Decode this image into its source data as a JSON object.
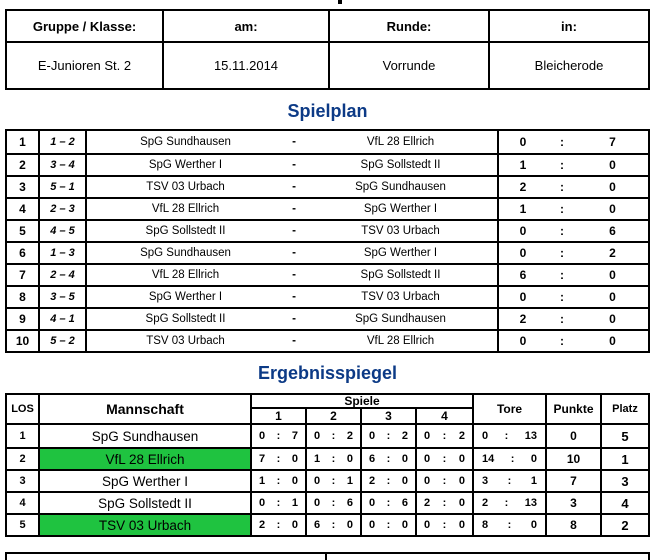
{
  "chars": {
    "colon": ":",
    "dash": "-"
  },
  "colors": {
    "title_blue": "#0c3a86",
    "highlight_green": "#1fc340",
    "border": "#000000"
  },
  "info_table": {
    "headers": [
      "Gruppe / Klasse:",
      "am:",
      "Runde:",
      "in:"
    ],
    "values": [
      "E-Junioren St. 2",
      "15.11.2014",
      "Vorrunde",
      "Bleicherode"
    ]
  },
  "spielplan": {
    "title": "Spielplan",
    "rows": [
      {
        "nr": "1",
        "pair": "1 – 2",
        "home": "SpG Sundhausen",
        "away": "VfL 28 Ellrich",
        "hs": "0",
        "as": "7"
      },
      {
        "nr": "2",
        "pair": "3 – 4",
        "home": "SpG Werther I",
        "away": "SpG Sollstedt II",
        "hs": "1",
        "as": "0"
      },
      {
        "nr": "3",
        "pair": "5 – 1",
        "home": "TSV 03 Urbach",
        "away": "SpG Sundhausen",
        "hs": "2",
        "as": "0"
      },
      {
        "nr": "4",
        "pair": "2 – 3",
        "home": "VfL 28 Ellrich",
        "away": "SpG Werther I",
        "hs": "1",
        "as": "0"
      },
      {
        "nr": "5",
        "pair": "4 – 5",
        "home": "SpG Sollstedt II",
        "away": "TSV 03 Urbach",
        "hs": "0",
        "as": "6"
      },
      {
        "nr": "6",
        "pair": "1 – 3",
        "home": "SpG Sundhausen",
        "away": "SpG Werther I",
        "hs": "0",
        "as": "2"
      },
      {
        "nr": "7",
        "pair": "2 – 4",
        "home": "VfL 28 Ellrich",
        "away": "SpG Sollstedt II",
        "hs": "6",
        "as": "0"
      },
      {
        "nr": "8",
        "pair": "3 – 5",
        "home": "SpG Werther I",
        "away": "TSV 03 Urbach",
        "hs": "0",
        "as": "0"
      },
      {
        "nr": "9",
        "pair": "4 – 1",
        "home": "SpG Sollstedt II",
        "away": "SpG Sundhausen",
        "hs": "2",
        "as": "0"
      },
      {
        "nr": "10",
        "pair": "5 – 2",
        "home": "TSV 03 Urbach",
        "away": "VfL 28 Ellrich",
        "hs": "0",
        "as": "0"
      }
    ]
  },
  "ergebnisspiegel": {
    "title": "Ergebnisspiegel",
    "headers": {
      "los": "LOS",
      "mannschaft": "Mannschaft",
      "spiele": "Spiele",
      "games": [
        "1",
        "2",
        "3",
        "4"
      ],
      "tore": "Tore",
      "punkte": "Punkte",
      "platz": "Platz"
    },
    "rows": [
      {
        "los": "1",
        "team": "SpG Sundhausen",
        "highlight": false,
        "g1h": "0",
        "g1a": "7",
        "g2h": "0",
        "g2a": "2",
        "g3h": "0",
        "g3a": "2",
        "g4h": "0",
        "g4a": "2",
        "toreh": "0",
        "torea": "13",
        "punkte": "0",
        "platz": "5"
      },
      {
        "los": "2",
        "team": "VfL 28 Ellrich",
        "highlight": true,
        "g1h": "7",
        "g1a": "0",
        "g2h": "1",
        "g2a": "0",
        "g3h": "6",
        "g3a": "0",
        "g4h": "0",
        "g4a": "0",
        "toreh": "14",
        "torea": "0",
        "punkte": "10",
        "platz": "1"
      },
      {
        "los": "3",
        "team": "SpG Werther I",
        "highlight": false,
        "g1h": "1",
        "g1a": "0",
        "g2h": "0",
        "g2a": "1",
        "g3h": "2",
        "g3a": "0",
        "g4h": "0",
        "g4a": "0",
        "toreh": "3",
        "torea": "1",
        "punkte": "7",
        "platz": "3"
      },
      {
        "los": "4",
        "team": "SpG Sollstedt II",
        "highlight": false,
        "g1h": "0",
        "g1a": "1",
        "g2h": "0",
        "g2a": "6",
        "g3h": "0",
        "g3a": "6",
        "g4h": "2",
        "g4a": "0",
        "toreh": "2",
        "torea": "13",
        "punkte": "3",
        "platz": "4"
      },
      {
        "los": "5",
        "team": "TSV 03 Urbach",
        "highlight": true,
        "g1h": "2",
        "g1a": "0",
        "g2h": "6",
        "g2a": "0",
        "g3h": "0",
        "g3a": "0",
        "g4h": "0",
        "g4a": "0",
        "toreh": "8",
        "torea": "0",
        "punkte": "8",
        "platz": "2"
      }
    ]
  }
}
